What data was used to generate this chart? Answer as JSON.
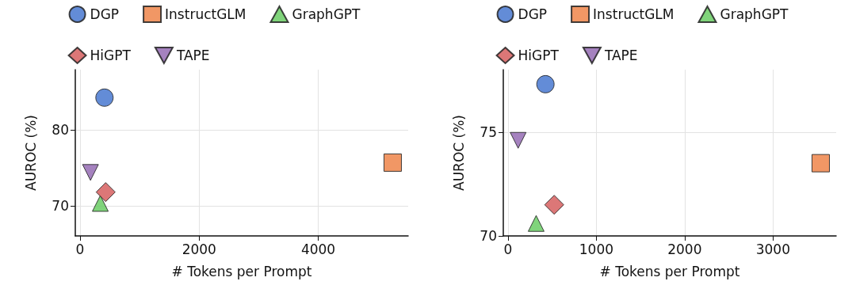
{
  "chart_data": [
    {
      "type": "scatter",
      "xlabel": "# Tokens per Prompt",
      "ylabel": "AUROC (%)",
      "xlim": [
        -80,
        5510
      ],
      "xticks": [
        0,
        2000,
        4000
      ],
      "ylim": [
        66,
        88
      ],
      "yticks": [
        70,
        80
      ],
      "grid": true,
      "legend": "top",
      "series": [
        {
          "name": "DGP",
          "color": "#4878d0",
          "marker": "circle",
          "x": [
            410
          ],
          "values": [
            84.3
          ]
        },
        {
          "name": "InstructGLM",
          "color": "#ee854a",
          "marker": "square",
          "x": [
            5250
          ],
          "values": [
            75.7
          ]
        },
        {
          "name": "GraphGPT",
          "color": "#6acc64",
          "marker": "triangle",
          "x": [
            340
          ],
          "values": [
            70.3
          ]
        },
        {
          "name": "HiGPT",
          "color": "#d65f5f",
          "marker": "diamond",
          "x": [
            430
          ],
          "values": [
            71.8
          ]
        },
        {
          "name": "TAPE",
          "color": "#956cb4",
          "marker": "triangle-down",
          "x": [
            175
          ],
          "values": [
            74.4
          ]
        }
      ]
    },
    {
      "type": "scatter",
      "xlabel": "# Tokens per Prompt",
      "ylabel": "AUROC (%)",
      "xlim": [
        -53,
        3715
      ],
      "xticks": [
        0,
        1000,
        2000,
        3000
      ],
      "ylim": [
        70,
        78
      ],
      "yticks": [
        70,
        75
      ],
      "grid": true,
      "legend": "top",
      "series": [
        {
          "name": "DGP",
          "color": "#4878d0",
          "marker": "circle",
          "x": [
            424
          ],
          "values": [
            77.3
          ]
        },
        {
          "name": "InstructGLM",
          "color": "#ee854a",
          "marker": "square",
          "x": [
            3540
          ],
          "values": [
            73.5
          ]
        },
        {
          "name": "GraphGPT",
          "color": "#6acc64",
          "marker": "triangle",
          "x": [
            319
          ],
          "values": [
            70.6
          ]
        },
        {
          "name": "HiGPT",
          "color": "#d65f5f",
          "marker": "diamond",
          "x": [
            523
          ],
          "values": [
            71.5
          ]
        },
        {
          "name": "TAPE",
          "color": "#956cb4",
          "marker": "triangle-down",
          "x": [
            115
          ],
          "values": [
            74.6
          ]
        }
      ]
    }
  ]
}
